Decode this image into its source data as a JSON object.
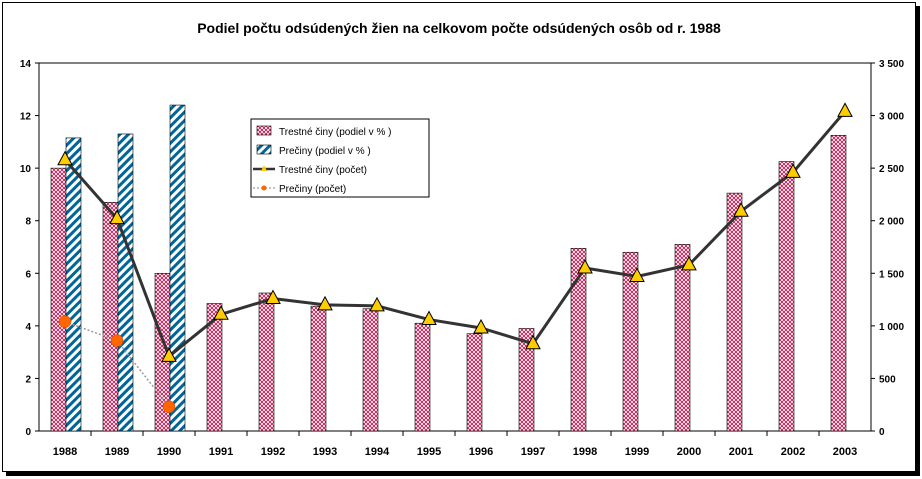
{
  "chart_data": {
    "type": "bar",
    "title": "Podiel počtu odsúdených žien na celkovom počte odsúdených osôb od r. 1988",
    "categories": [
      "1988",
      "1989",
      "1990",
      "1991",
      "1992",
      "1993",
      "1994",
      "1995",
      "1996",
      "1997",
      "1998",
      "1999",
      "2000",
      "2001",
      "2002",
      "2003"
    ],
    "left_axis": {
      "min": 0,
      "max": 14,
      "step": 2,
      "ticks": [
        "0",
        "2",
        "4",
        "6",
        "8",
        "10",
        "12",
        "14"
      ]
    },
    "right_axis": {
      "min": 0,
      "max": 3500,
      "step": 500,
      "ticks": [
        "0",
        "500",
        "1 000",
        "1 500",
        "2 000",
        "2 500",
        "3 000",
        "3 500"
      ]
    },
    "series": [
      {
        "name": "Trestné činy (podiel v % )",
        "kind": "bar",
        "axis": "left",
        "color": "#cc3366",
        "values": [
          10.0,
          8.7,
          6.0,
          4.85,
          5.25,
          4.75,
          4.65,
          4.1,
          3.7,
          3.9,
          6.95,
          6.8,
          7.1,
          9.05,
          10.25,
          11.25
        ]
      },
      {
        "name": "Prečiny (podiel v % )",
        "kind": "bar",
        "axis": "left",
        "color": "#006699",
        "values": [
          11.15,
          11.3,
          12.4,
          null,
          null,
          null,
          null,
          null,
          null,
          null,
          null,
          null,
          null,
          null,
          null,
          null
        ]
      },
      {
        "name": "Trestné činy (počet)",
        "kind": "line",
        "axis": "right",
        "color": "#333333",
        "marker_color": "#ffcc00",
        "values": [
          2580,
          2020,
          710,
          1110,
          1260,
          1200,
          1190,
          1060,
          980,
          830,
          1550,
          1470,
          1580,
          2090,
          2460,
          3040
        ]
      },
      {
        "name": "Prečiny (počet)",
        "kind": "line",
        "axis": "right",
        "color": "#999999",
        "marker_color": "#ff6600",
        "values": [
          1040,
          860,
          230,
          null,
          null,
          null,
          null,
          null,
          null,
          null,
          null,
          null,
          null,
          null,
          null,
          null
        ]
      }
    ]
  }
}
